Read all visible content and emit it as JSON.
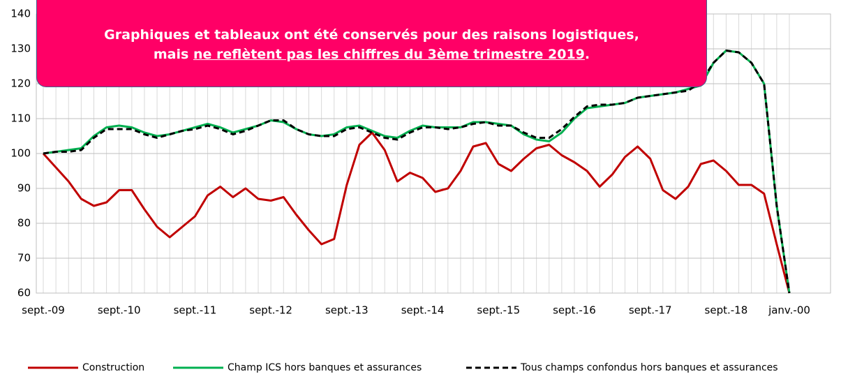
{
  "banner": {
    "line1": "Graphiques et tableaux ont été conservés pour des raisons logistiques,",
    "line2_start": "mais",
    "line2_underlined": "ne reflètent pas les chiffres du 3ème trimestre 2019",
    "line2_end": "."
  },
  "chart_data": {
    "type": "line",
    "categories": [
      "sept.-09",
      null,
      null,
      null,
      null,
      null,
      "sept.-10",
      null,
      null,
      null,
      null,
      null,
      "sept.-11",
      null,
      null,
      null,
      null,
      null,
      "sept.-12",
      null,
      null,
      null,
      null,
      null,
      "sept.-13",
      null,
      null,
      null,
      null,
      null,
      "sept.-14",
      null,
      null,
      null,
      null,
      null,
      "sept.-15",
      null,
      null,
      null,
      null,
      null,
      "sept.-16",
      null,
      null,
      null,
      null,
      null,
      "sept.-17",
      null,
      null,
      null,
      null,
      null,
      "sept.-18",
      null,
      null,
      null,
      null,
      "janv.-00"
    ],
    "series": [
      {
        "name": "Construction",
        "color": "#c00000",
        "dash": false,
        "values": [
          100,
          96,
          92,
          87,
          85,
          86,
          89.5,
          89.5,
          84,
          79,
          76,
          79,
          82,
          88,
          90.5,
          87.5,
          90,
          87,
          86.5,
          87.5,
          82.5,
          78,
          74,
          75.5,
          91,
          102.5,
          106,
          101,
          92,
          94.5,
          93,
          89,
          90,
          95,
          102,
          103,
          97,
          95,
          98.5,
          101.5,
          102.5,
          99.5,
          97.5,
          95,
          90.5,
          94,
          99,
          102,
          98.5,
          89.5,
          87,
          90.5,
          97,
          98,
          95,
          91,
          91,
          88.5,
          74,
          60
        ]
      },
      {
        "name": "Champ ICS hors banques et assurances",
        "color": "#00b050",
        "dash": false,
        "values": [
          100,
          100.5,
          101,
          101.5,
          105,
          107.5,
          108,
          107.5,
          106,
          105,
          105.5,
          106.5,
          107.5,
          108.5,
          107.5,
          106,
          107,
          108,
          109.5,
          109,
          107,
          105.5,
          105,
          105.5,
          107.5,
          108,
          106.5,
          105,
          104.5,
          106.5,
          108,
          107.5,
          107.5,
          107.5,
          109,
          109,
          108.5,
          108,
          105.5,
          104,
          103.5,
          106,
          110,
          113,
          113.5,
          114,
          114.5,
          116,
          116.5,
          117,
          117.5,
          118.5,
          119.5,
          126,
          129.5,
          129,
          126,
          120,
          85,
          60
        ]
      },
      {
        "name": "Tous champs confondus hors banques et assurances",
        "color": "#000000",
        "dash": true,
        "values": [
          100,
          100.5,
          100.5,
          101,
          104.5,
          107,
          107,
          107,
          105.5,
          104.5,
          105.5,
          106.5,
          107,
          108,
          107,
          105.5,
          106.5,
          108,
          109.5,
          109.5,
          107,
          105.5,
          105,
          105,
          107,
          107.5,
          106,
          104.5,
          104,
          106,
          107.5,
          107.5,
          107,
          107.5,
          108.5,
          109,
          108,
          108,
          106,
          104.5,
          104.5,
          107,
          110.5,
          113.5,
          114,
          114,
          114.5,
          116,
          116.5,
          117,
          117.5,
          118,
          120.5,
          126,
          129.5,
          129,
          126,
          120,
          85,
          60
        ]
      }
    ],
    "ylim": [
      60,
      140
    ],
    "yticks": [
      60,
      70,
      80,
      90,
      100,
      110,
      120,
      130,
      140
    ],
    "grid": true,
    "legend": "bottom"
  }
}
